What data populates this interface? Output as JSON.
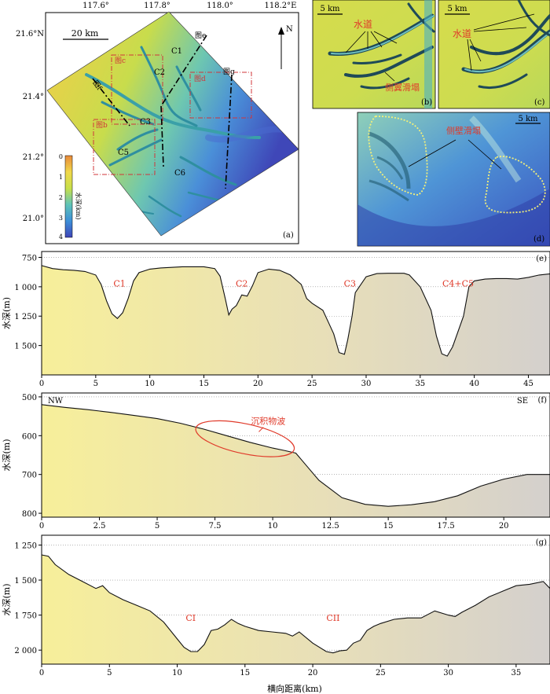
{
  "map_a": {
    "lon_ticks": [
      "117.6°",
      "117.8°",
      "118.0°",
      "118.2°E"
    ],
    "lat_ticks": [
      "21.6°N",
      "21.4°",
      "21.2°",
      "21.0°"
    ],
    "scale_bar": "20 km",
    "north": "N",
    "panel_label": "(a)",
    "colorbar": {
      "title": "水深(km)",
      "ticks": [
        "0",
        "1",
        "2",
        "3",
        "4"
      ],
      "colors": [
        "#e8893a",
        "#f0d84a",
        "#c8df4a",
        "#5fc4b8",
        "#3d8fd8",
        "#3f45b8"
      ]
    },
    "channel_labels": [
      "C1",
      "C2",
      "C3",
      "C5",
      "C6"
    ],
    "box_labels": [
      "图c",
      "图b",
      "图d"
    ],
    "profile_labels": [
      "图e",
      "图f",
      "图g"
    ]
  },
  "panel_b": {
    "scale_bar": "5 km",
    "channel_label": "水道",
    "slide_label": "侧翼滑塌",
    "panel_label": "(b)"
  },
  "panel_c": {
    "scale_bar": "5 km",
    "channel_label": "水道",
    "panel_label": "(c)"
  },
  "panel_d": {
    "scale_bar": "5 km",
    "slide_label": "侧壁滑塌",
    "panel_label": "(d)"
  },
  "x_axis_label": "横向距离(km)",
  "chart_data": [
    {
      "type": "area",
      "panel": "(e)",
      "ylabel": "水深(m)",
      "xlim": [
        0,
        47
      ],
      "ylim": [
        1750,
        700
      ],
      "y_inverted": true,
      "x_ticks": [
        0,
        5,
        10,
        15,
        20,
        25,
        30,
        35,
        40,
        45
      ],
      "y_ticks": [
        750,
        1000,
        1250,
        1500
      ],
      "y_tick_labels": [
        "750",
        "1 000",
        "1 250",
        "1 500"
      ],
      "grid": "horizontal dotted",
      "annotations": [
        {
          "text": "C1",
          "x": 7.2,
          "y": 970
        },
        {
          "text": "C2",
          "x": 18.5,
          "y": 970
        },
        {
          "text": "C3",
          "x": 28.5,
          "y": 970
        },
        {
          "text": "C4+C5",
          "x": 38.5,
          "y": 970
        }
      ],
      "x": [
        0,
        1,
        2,
        3,
        4,
        5,
        5.5,
        6,
        6.5,
        7,
        7.5,
        8,
        8.5,
        9,
        10,
        11,
        12,
        13,
        14,
        15,
        16,
        16.5,
        17,
        17.3,
        17.6,
        18,
        18.5,
        19,
        19.5,
        20,
        21,
        22,
        23,
        24,
        24.5,
        25,
        26,
        26.5,
        27,
        27.5,
        28,
        28.3,
        28.7,
        29,
        30,
        31,
        32,
        33,
        33.5,
        34,
        35,
        36,
        36.5,
        37,
        37.5,
        38,
        39,
        39.5,
        40,
        41,
        42,
        43,
        44,
        45,
        46,
        47
      ],
      "values": [
        820,
        845,
        855,
        860,
        870,
        900,
        980,
        1120,
        1230,
        1270,
        1220,
        1100,
        950,
        880,
        850,
        840,
        835,
        830,
        830,
        830,
        845,
        910,
        1110,
        1240,
        1190,
        1160,
        1070,
        1080,
        990,
        880,
        850,
        860,
        900,
        980,
        1100,
        1140,
        1200,
        1300,
        1400,
        1560,
        1575,
        1450,
        1250,
        1050,
        915,
        888,
        885,
        885,
        885,
        900,
        1000,
        1200,
        1420,
        1570,
        1590,
        1510,
        1250,
        1000,
        950,
        935,
        930,
        930,
        935,
        920,
        900,
        890
      ]
    },
    {
      "type": "area",
      "panel": "(f)",
      "ylabel": "水深(m)",
      "xlim": [
        0,
        22
      ],
      "ylim": [
        810,
        490
      ],
      "y_inverted": true,
      "x_ticks": [
        0,
        2.5,
        5,
        7.5,
        10,
        12.5,
        15,
        17.5,
        20
      ],
      "y_ticks": [
        500,
        600,
        700,
        800
      ],
      "y_tick_labels": [
        "500",
        "600",
        "700",
        "800"
      ],
      "grid": "horizontal dotted",
      "corner_labels": {
        "left": "NW",
        "right": "SE"
      },
      "annotations": [
        {
          "text": "沉积物波",
          "x": 9.8,
          "y": 562
        }
      ],
      "x": [
        0,
        1,
        2,
        3,
        4,
        5,
        6,
        7,
        8,
        9,
        10,
        10.5,
        11,
        11.5,
        12,
        13,
        14,
        15,
        16,
        17,
        18,
        19,
        20,
        21,
        22
      ],
      "values": [
        520,
        527,
        533,
        540,
        548,
        556,
        568,
        583,
        600,
        617,
        632,
        638,
        645,
        680,
        715,
        760,
        777,
        782,
        778,
        770,
        755,
        730,
        712,
        700,
        700
      ]
    },
    {
      "type": "area",
      "panel": "(g)",
      "ylabel": "水深(m)",
      "xlim": [
        0,
        37.5
      ],
      "ylim": [
        2100,
        1180
      ],
      "y_inverted": true,
      "x_ticks": [
        0,
        5,
        10,
        15,
        20,
        25,
        30,
        35
      ],
      "y_ticks": [
        1250,
        1500,
        1750,
        2000
      ],
      "y_tick_labels": [
        "1 250",
        "1 500",
        "1 750",
        "2 000"
      ],
      "grid": "horizontal dotted",
      "annotations": [
        {
          "text": "CI",
          "x": 11,
          "y": 1770
        },
        {
          "text": "CII",
          "x": 21.5,
          "y": 1770
        }
      ],
      "x": [
        0,
        0.5,
        1,
        2,
        3,
        4,
        4.5,
        5,
        6,
        7,
        8,
        9,
        10,
        10.5,
        11,
        11.5,
        12,
        12.5,
        13,
        13.5,
        14,
        14.5,
        15,
        16,
        17,
        18,
        18.5,
        19,
        20,
        21,
        21.5,
        22,
        22.5,
        23,
        23.5,
        24,
        24.5,
        25,
        26,
        27,
        28,
        29,
        30,
        30.5,
        31,
        32,
        33,
        34,
        35,
        36,
        37,
        37.5
      ],
      "values": [
        1320,
        1330,
        1390,
        1460,
        1510,
        1560,
        1540,
        1590,
        1640,
        1680,
        1720,
        1800,
        1920,
        1980,
        2010,
        2010,
        1960,
        1860,
        1850,
        1820,
        1780,
        1810,
        1830,
        1860,
        1870,
        1880,
        1900,
        1870,
        1950,
        2010,
        2020,
        2005,
        2000,
        1950,
        1930,
        1860,
        1830,
        1810,
        1780,
        1770,
        1770,
        1720,
        1750,
        1760,
        1730,
        1680,
        1620,
        1580,
        1540,
        1530,
        1510,
        1560
      ]
    }
  ]
}
